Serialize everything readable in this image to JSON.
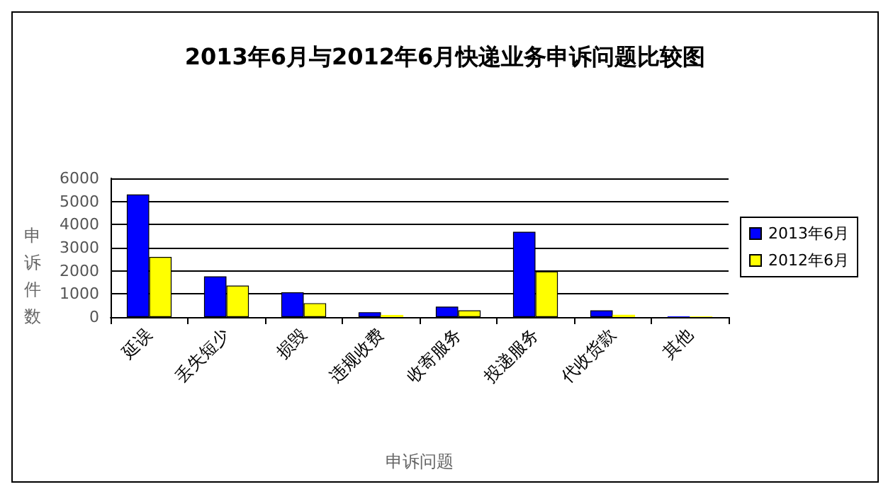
{
  "chart_data": {
    "type": "bar",
    "title": "2013年6月与2012年6月快递业务申诉问题比较图",
    "xlabel": "申诉问题",
    "ylabel": "申诉件数",
    "categories": [
      "延误",
      "丢失短少",
      "损毁",
      "违规收费",
      "收寄服务",
      "投递服务",
      "代收货款",
      "其他"
    ],
    "series": [
      {
        "name": "2013年6月",
        "color": "#0000ff",
        "values": [
          5300,
          1760,
          1070,
          210,
          450,
          3690,
          290,
          30
        ]
      },
      {
        "name": "2012年6月",
        "color": "#ffff00",
        "values": [
          2600,
          1360,
          600,
          90,
          290,
          1970,
          100,
          30
        ]
      }
    ],
    "ylim": [
      0,
      6000
    ],
    "yticks": [
      0,
      1000,
      2000,
      3000,
      4000,
      5000,
      6000
    ],
    "grid": "y",
    "legend": "right"
  }
}
